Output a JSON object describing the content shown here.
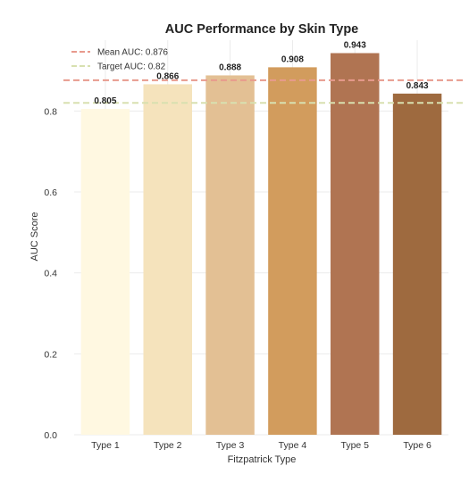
{
  "chart_data": {
    "type": "bar",
    "title": "AUC Performance by Skin Type",
    "xlabel": "Fitzpatrick Type",
    "ylabel": "AUC Score",
    "categories": [
      "Type 1",
      "Type 2",
      "Type 3",
      "Type 4",
      "Type 5",
      "Type 6"
    ],
    "values": [
      0.805,
      0.866,
      0.888,
      0.908,
      0.943,
      0.843
    ],
    "value_labels": [
      "0.805",
      "0.866",
      "0.888",
      "0.908",
      "0.943",
      "0.843"
    ],
    "bar_colors": [
      "#fff8e1",
      "#f5e3bc",
      "#e3c094",
      "#d29c5d",
      "#b07452",
      "#9e6a3f"
    ],
    "ylim": [
      0,
      0.975
    ],
    "yticks": [
      0.0,
      0.2,
      0.4,
      0.6,
      0.8
    ],
    "ytick_labels": [
      "0.0",
      "0.2",
      "0.4",
      "0.6",
      "0.8"
    ],
    "grid": true,
    "reference_lines": [
      {
        "label": "Mean AUC: 0.876",
        "value": 0.876,
        "color": "#e89a8d",
        "style": "dashed"
      },
      {
        "label": "Target AUC: 0.82",
        "value": 0.82,
        "color": "#d8e0b0",
        "style": "dashed"
      }
    ],
    "legend_position": "top-left"
  }
}
